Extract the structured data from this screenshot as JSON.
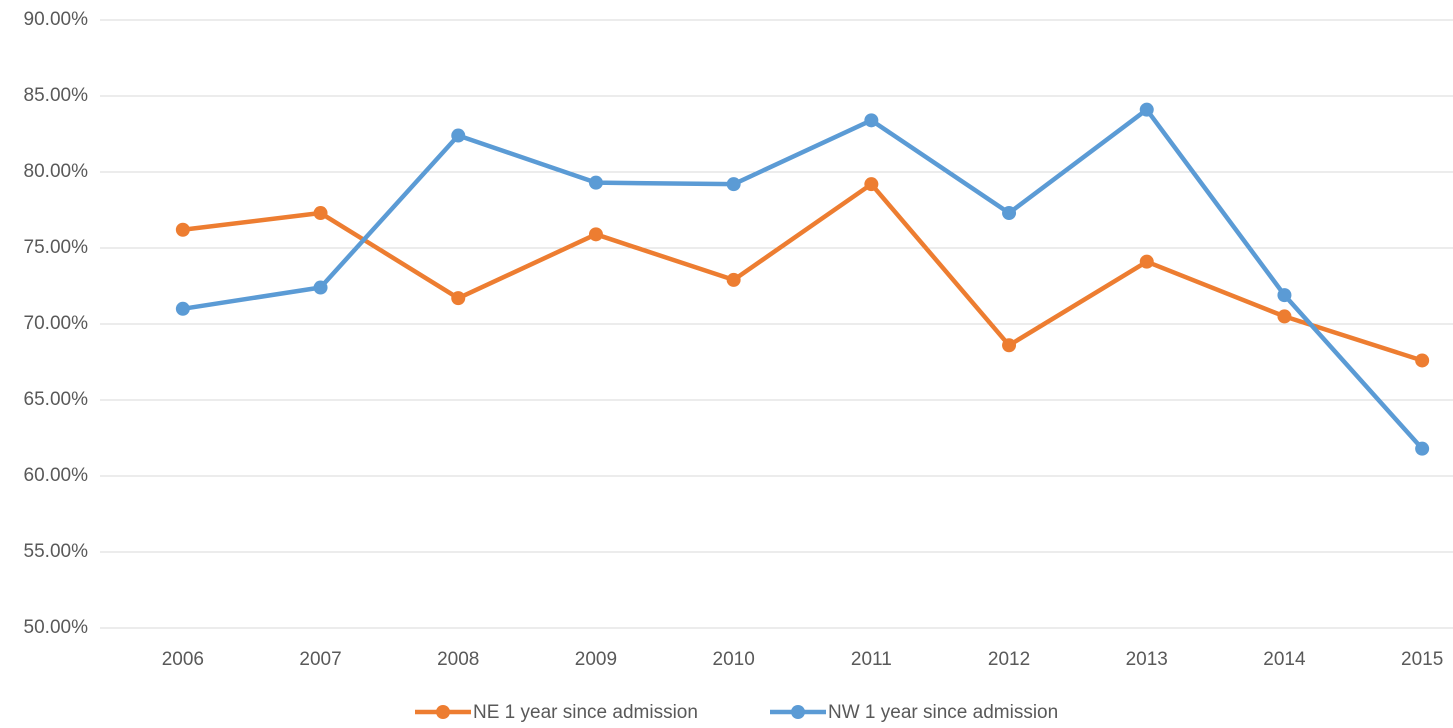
{
  "chart_data": {
    "type": "line",
    "categories": [
      "2006",
      "2007",
      "2008",
      "2009",
      "2010",
      "2011",
      "2012",
      "2013",
      "2014",
      "2015"
    ],
    "series": [
      {
        "name": "NE 1 year since admission",
        "color": "#ed7d31",
        "values": [
          76.2,
          77.3,
          71.7,
          75.9,
          72.9,
          79.2,
          68.6,
          74.1,
          70.5,
          67.6
        ]
      },
      {
        "name": "NW 1 year since admission",
        "color": "#5b9bd5",
        "values": [
          71.0,
          72.4,
          82.4,
          79.3,
          79.2,
          83.4,
          77.3,
          84.1,
          71.9,
          61.8
        ]
      }
    ],
    "ylim": [
      50,
      90
    ],
    "yticks": [
      {
        "value": 50,
        "label": "50.00%"
      },
      {
        "value": 55,
        "label": "55.00%"
      },
      {
        "value": 60,
        "label": "60.00%"
      },
      {
        "value": 65,
        "label": "65.00%"
      },
      {
        "value": 70,
        "label": "70.00%"
      },
      {
        "value": 75,
        "label": "75.00%"
      },
      {
        "value": 80,
        "label": "80.00%"
      },
      {
        "value": 85,
        "label": "85.00%"
      },
      {
        "value": 90,
        "label": "90.00%"
      }
    ],
    "grid": true,
    "legend": "bottom"
  }
}
